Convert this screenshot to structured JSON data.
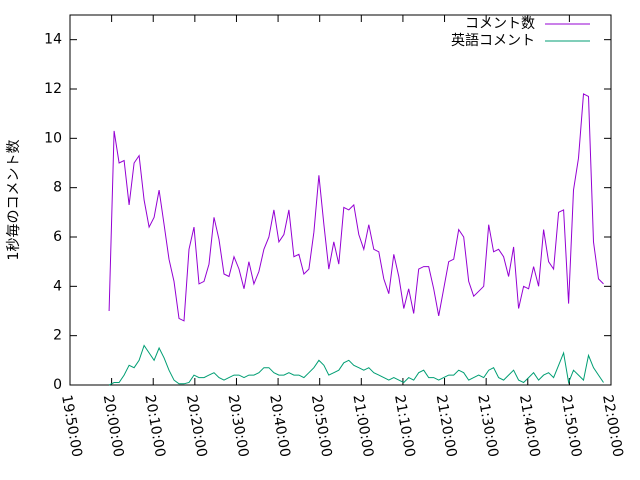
{
  "chart_data": {
    "type": "line",
    "y_label": "1秒毎のコメント数",
    "x": [
      71964,
      72036,
      72108,
      72180,
      72252,
      72324,
      72396,
      72468,
      72540,
      72612,
      72684,
      72756,
      72828,
      72900,
      72972,
      73044,
      73116,
      73188,
      73260,
      73332,
      73404,
      73476,
      73548,
      73620,
      73692,
      73764,
      73836,
      73908,
      73980,
      74052,
      74124,
      74196,
      74268,
      74340,
      74412,
      74484,
      74556,
      74628,
      74700,
      74772,
      74844,
      74916,
      74988,
      75060,
      75132,
      75204,
      75276,
      75348,
      75420,
      75492,
      75564,
      75636,
      75708,
      75780,
      75852,
      75924,
      75996,
      76068,
      76140,
      76212,
      76284,
      76356,
      76428,
      76500,
      76572,
      76644,
      76716,
      76788,
      76860,
      76932,
      77004,
      77076,
      77148,
      77220,
      77292,
      77364,
      77436,
      77508,
      77580,
      77652,
      77724,
      77796,
      77868,
      77940,
      78012,
      78084,
      78156,
      78228,
      78300,
      78372,
      78444,
      78516,
      78588,
      78660,
      78732,
      78804,
      78876,
      78948,
      79020,
      79092
    ],
    "series": [
      {
        "name": "コメント数",
        "color": "#9400d3",
        "values": [
          3.0,
          10.3,
          9.0,
          9.1,
          7.3,
          9.0,
          9.3,
          7.5,
          6.4,
          6.8,
          7.9,
          6.5,
          5.1,
          4.2,
          2.7,
          2.6,
          5.5,
          6.4,
          4.1,
          4.2,
          4.9,
          6.8,
          5.9,
          4.5,
          4.4,
          5.2,
          4.7,
          3.9,
          5.0,
          4.1,
          4.6,
          5.5,
          6.0,
          7.1,
          5.8,
          6.1,
          7.1,
          5.2,
          5.3,
          4.5,
          4.7,
          6.2,
          8.5,
          6.5,
          4.7,
          5.8,
          4.9,
          7.2,
          7.1,
          7.3,
          6.1,
          5.5,
          6.5,
          5.5,
          5.4,
          4.3,
          3.7,
          5.3,
          4.4,
          3.1,
          3.9,
          2.9,
          4.7,
          4.8,
          4.8,
          3.9,
          2.8,
          3.9,
          5.0,
          5.1,
          6.3,
          6.0,
          4.2,
          3.6,
          3.8,
          4.0,
          6.5,
          5.4,
          5.5,
          5.2,
          4.4,
          5.6,
          3.1,
          4.0,
          3.9,
          4.8,
          4.0,
          6.3,
          5.0,
          4.7,
          7.0,
          7.1,
          3.3,
          7.9,
          9.2,
          11.8,
          11.7,
          5.8,
          4.3,
          4.1
        ]
      },
      {
        "name": "英語コメント",
        "color": "#009e73",
        "values": [
          0,
          0.1,
          0.1,
          0.4,
          0.8,
          0.7,
          1.0,
          1.6,
          1.3,
          1.0,
          1.5,
          1.1,
          0.6,
          0.2,
          0.05,
          0.05,
          0.1,
          0.4,
          0.3,
          0.3,
          0.4,
          0.5,
          0.3,
          0.2,
          0.3,
          0.4,
          0.4,
          0.3,
          0.4,
          0.4,
          0.5,
          0.7,
          0.7,
          0.5,
          0.4,
          0.4,
          0.5,
          0.4,
          0.4,
          0.3,
          0.5,
          0.7,
          1.0,
          0.8,
          0.4,
          0.5,
          0.6,
          0.9,
          1.0,
          0.8,
          0.7,
          0.6,
          0.7,
          0.5,
          0.4,
          0.3,
          0.2,
          0.3,
          0.2,
          0.1,
          0.3,
          0.2,
          0.5,
          0.6,
          0.3,
          0.3,
          0.2,
          0.3,
          0.4,
          0.4,
          0.6,
          0.5,
          0.2,
          0.3,
          0.4,
          0.3,
          0.6,
          0.7,
          0.3,
          0.2,
          0.4,
          0.6,
          0.2,
          0.1,
          0.3,
          0.5,
          0.2,
          0.4,
          0.5,
          0.3,
          0.8,
          1.3,
          0.1,
          0.6,
          0.4,
          0.2,
          1.2,
          0.7,
          0.4,
          0.1
        ]
      }
    ],
    "xlim": [
      71400,
      79200
    ],
    "xticks": [
      {
        "value": 71400,
        "label": "19:50:00"
      },
      {
        "value": 72000,
        "label": "20:00:00"
      },
      {
        "value": 72600,
        "label": "20:10:00"
      },
      {
        "value": 73200,
        "label": "20:20:00"
      },
      {
        "value": 73800,
        "label": "20:30:00"
      },
      {
        "value": 74400,
        "label": "20:40:00"
      },
      {
        "value": 75000,
        "label": "20:50:00"
      },
      {
        "value": 75600,
        "label": "21:00:00"
      },
      {
        "value": 76200,
        "label": "21:10:00"
      },
      {
        "value": 76800,
        "label": "21:20:00"
      },
      {
        "value": 77400,
        "label": "21:30:00"
      },
      {
        "value": 78000,
        "label": "21:40:00"
      },
      {
        "value": 78600,
        "label": "21:50:00"
      },
      {
        "value": 79200,
        "label": "22:00:00"
      }
    ],
    "ylim": [
      0,
      15
    ],
    "yticks": [
      0,
      2,
      4,
      6,
      8,
      10,
      12,
      14
    ],
    "legend": "top-right"
  }
}
